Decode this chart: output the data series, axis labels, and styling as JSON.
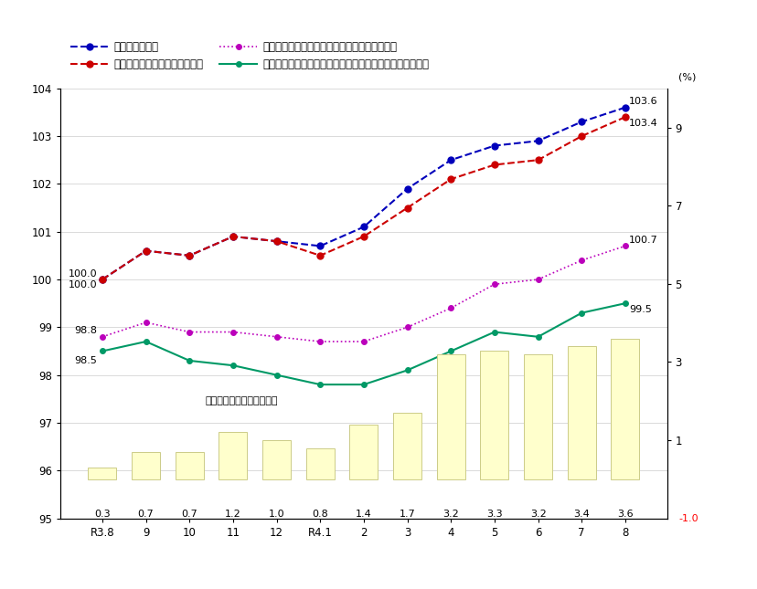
{
  "xlabel_categories": [
    "R3.8",
    "9",
    "10",
    "11",
    "12",
    "R4.1",
    "2",
    "3",
    "4",
    "5",
    "6",
    "7",
    "8"
  ],
  "left_ylim": [
    95.0,
    104.0
  ],
  "right_ylim": [
    -1.0,
    10.0
  ],
  "left_yticks": [
    95.0,
    96.0,
    97.0,
    98.0,
    99.0,
    100.0,
    101.0,
    102.0,
    103.0,
    104.0
  ],
  "right_yticks": [
    1.0,
    3.0,
    5.0,
    7.0,
    9.0
  ],
  "series_sougo": [
    100.0,
    100.6,
    100.5,
    100.9,
    100.8,
    100.7,
    101.1,
    101.9,
    102.5,
    102.8,
    102.9,
    103.3,
    103.6
  ],
  "series_sinsen_nozoku": [
    100.0,
    100.6,
    100.5,
    100.9,
    100.8,
    100.5,
    100.9,
    101.5,
    102.1,
    102.4,
    102.5,
    103.0,
    103.4
  ],
  "series_sinsen_energy_nozoku": [
    98.8,
    99.1,
    98.9,
    98.9,
    98.8,
    98.7,
    98.7,
    99.0,
    99.4,
    99.9,
    100.0,
    100.4,
    100.7
  ],
  "series_shokuryo_energy_nozoku": [
    98.5,
    98.7,
    98.3,
    98.2,
    98.0,
    97.8,
    97.8,
    98.1,
    98.5,
    98.9,
    98.8,
    99.3,
    99.5
  ],
  "bar_values": [
    0.3,
    0.7,
    0.7,
    1.2,
    1.0,
    0.8,
    1.4,
    1.7,
    3.2,
    3.3,
    3.2,
    3.4,
    3.6
  ],
  "bar_color": "#ffffcc",
  "bar_edgecolor": "#cccc88",
  "color_sougo": "#0000bb",
  "color_sinsen_nozoku": "#cc0000",
  "color_sinsen_energy_nozoku": "#bb00bb",
  "color_shokuryo_energy_nozoku": "#009966",
  "legend_labels": [
    "総合（左目盛）",
    "生鮮食品を除く総合（左目盛）",
    "生鮮食品及びエネルギーを除く総合（左目盛）",
    "食料（酒類を除く）及びエネルギーを除く総合（左目盛）"
  ],
  "bar_label": "総合前年同月比（右目盛）",
  "right_axis_label": "(%)"
}
